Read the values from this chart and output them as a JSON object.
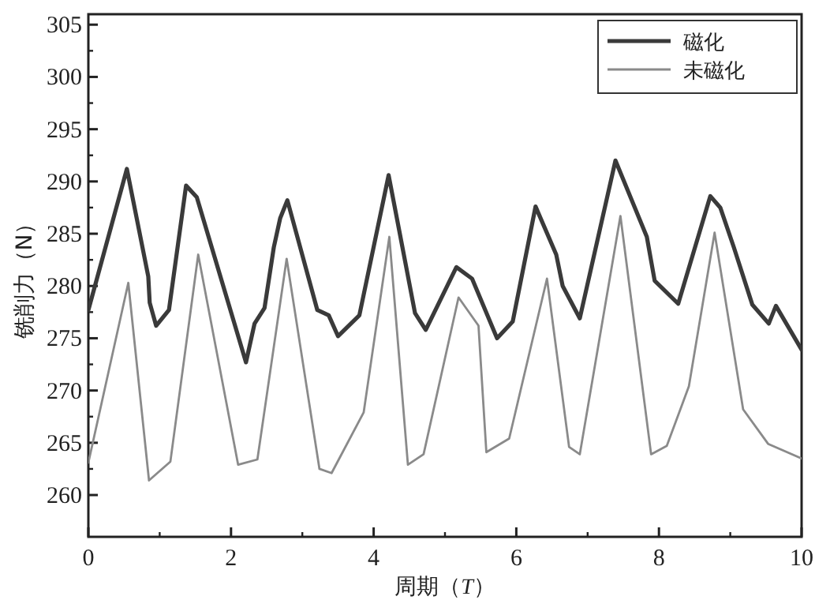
{
  "chart_data": {
    "type": "line",
    "xlabel": "周期（*T*）",
    "ylabel": "铣削力（N）",
    "xlim": [
      0,
      10
    ],
    "xticks": [
      0,
      2,
      4,
      6,
      8,
      10
    ],
    "ylim": [
      256,
      306
    ],
    "yticks": [
      260,
      265,
      270,
      275,
      280,
      285,
      290,
      295,
      300,
      305
    ],
    "legend": "top right",
    "grid": false,
    "marker": "none",
    "line_style": "solid",
    "series": [
      {
        "name": "磁化",
        "color": "#3a3a3a",
        "x": [
          0,
          0.54,
          0.84,
          0.86,
          0.95,
          1.13,
          1.37,
          1.52,
          2.21,
          2.33,
          2.47,
          2.6,
          2.69,
          2.79,
          3.21,
          3.37,
          3.5,
          3.8,
          4.21,
          4.58,
          4.73,
          5.16,
          5.38,
          5.73,
          5.95,
          6.27,
          6.56,
          6.65,
          6.89,
          7.39,
          7.83,
          7.94,
          8.27,
          8.72,
          8.86,
          9.05,
          9.31,
          9.54,
          9.64,
          10
        ],
        "values": [
          277.7,
          291.2,
          280.9,
          278.4,
          276.2,
          277.7,
          289.6,
          288.5,
          272.7,
          276.4,
          277.9,
          283.7,
          286.5,
          288.2,
          277.7,
          277.2,
          275.2,
          277.2,
          290.6,
          277.4,
          275.8,
          281.8,
          280.7,
          275,
          276.6,
          287.6,
          283,
          280,
          276.9,
          292,
          284.7,
          280.5,
          278.3,
          288.6,
          287.5,
          283.7,
          278.2,
          276.4,
          278.1,
          273.9
        ]
      },
      {
        "name": "未磁化",
        "color": "#8a8a8a",
        "x": [
          0,
          0.56,
          0.85,
          1.15,
          1.54,
          2.1,
          2.37,
          2.78,
          3.24,
          3.41,
          3.86,
          4.22,
          4.48,
          4.7,
          5.19,
          5.47,
          5.58,
          5.9,
          6.43,
          6.74,
          6.89,
          7.46,
          7.89,
          8.11,
          8.42,
          8.78,
          9.18,
          9.53,
          10
        ],
        "values": [
          263.1,
          280.3,
          261.4,
          263.2,
          283,
          262.9,
          263.4,
          282.6,
          262.5,
          262.1,
          267.9,
          284.7,
          262.9,
          263.9,
          278.9,
          276.2,
          264.1,
          265.4,
          280.7,
          264.6,
          263.9,
          286.7,
          263.9,
          264.7,
          270.4,
          285.1,
          268.2,
          264.9,
          263.5
        ]
      }
    ]
  }
}
